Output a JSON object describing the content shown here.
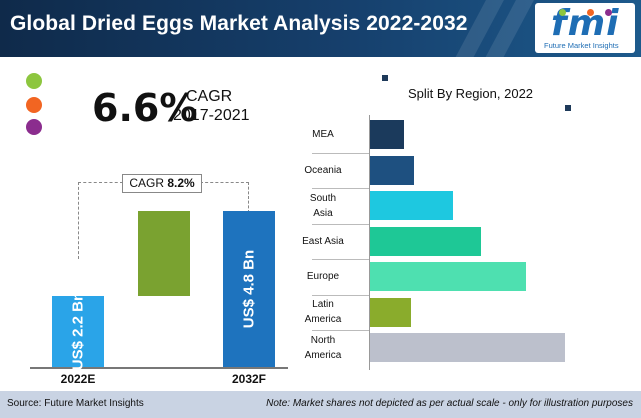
{
  "header": {
    "title": "Global Dried Eggs Market Analysis 2022-2032",
    "logo_text": "fmi",
    "logo_tagline": "Future Market Insights"
  },
  "cagr_callout": {
    "value": "6.6%",
    "label": "CAGR",
    "period": "2017-2021"
  },
  "legend_dots": [
    {
      "name": "green",
      "color": "#8dc63f"
    },
    {
      "name": "orange",
      "color": "#f26522"
    },
    {
      "name": "purple",
      "color": "#8b2d8e"
    }
  ],
  "chart_data": [
    {
      "type": "bar",
      "categories": [
        "2022E",
        "2032F"
      ],
      "values": [
        2.2,
        4.8
      ],
      "unit": "US$ Bn",
      "bar_labels": [
        "US$ 2.2 Bn",
        "US$ 4.8 Bn"
      ],
      "bar_colors": [
        "#2aa4e8",
        "#1e73be"
      ],
      "increment_color": "#7aa230",
      "cagr_label": "CAGR",
      "cagr_value": "8.2%",
      "ylim": [
        0,
        5.0
      ]
    },
    {
      "type": "bar",
      "orientation": "horizontal",
      "title": "Split By Region, 2022",
      "categories": [
        "MEA",
        "Oceania",
        "South Asia",
        "East Asia",
        "Europe",
        "Latin America",
        "North America"
      ],
      "category_lines": [
        [
          "MEA"
        ],
        [
          "Oceania"
        ],
        [
          "South",
          "Asia"
        ],
        [
          "East Asia"
        ],
        [
          "Europe"
        ],
        [
          "Latin",
          "America"
        ],
        [
          "North",
          "America"
        ]
      ],
      "values": [
        3.5,
        4.5,
        8.5,
        11.4,
        16.0,
        4.2,
        20.0
      ],
      "colors": [
        "#1b3a5c",
        "#1e5080",
        "#1ec8e0",
        "#1ec896",
        "#4ee0b0",
        "#8aac2c",
        "#bcc0cc"
      ],
      "xlim": [
        0,
        20.0
      ]
    }
  ],
  "footer": {
    "source": "Source: Future Market Insights",
    "note": "Note: Market shares not depicted as per actual scale - only for illustration purposes"
  }
}
